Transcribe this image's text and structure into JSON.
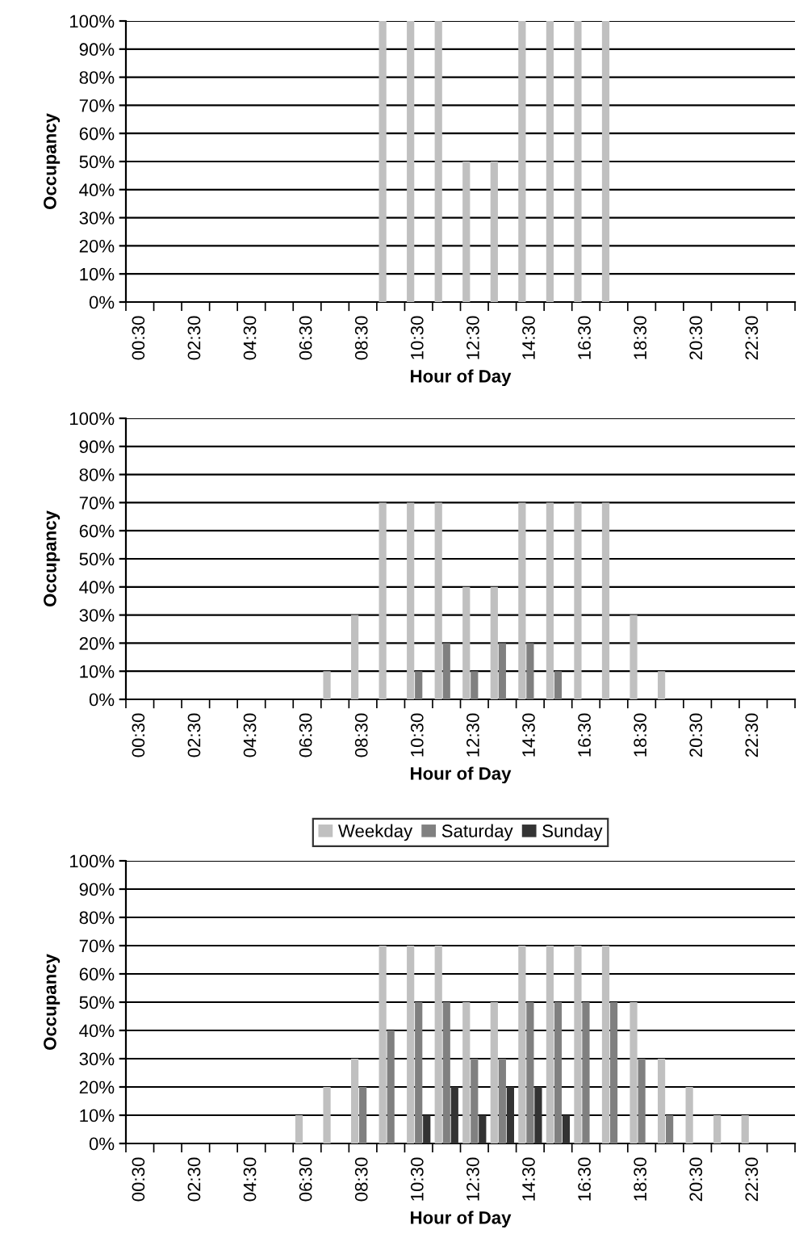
{
  "chart_data": [
    {
      "type": "bar",
      "xlabel": "Hour of Day",
      "ylabel": "Occupancy",
      "categories": [
        "00:30",
        null,
        "02:30",
        null,
        "04:30",
        null,
        "06:30",
        null,
        "08:30",
        null,
        "10:30",
        null,
        "12:30",
        null,
        "14:30",
        null,
        "16:30",
        null,
        "18:30",
        null,
        "20:30",
        null,
        "22:30",
        null
      ],
      "series": [
        {
          "color": "#c0c0c0",
          "values": [
            0,
            0,
            0,
            0,
            0,
            0,
            0,
            0,
            0,
            100,
            100,
            100,
            50,
            50,
            100,
            100,
            100,
            100,
            0,
            0,
            0,
            0,
            0,
            0
          ]
        },
        {
          "color": "#808080",
          "values": [
            0,
            0,
            0,
            0,
            0,
            0,
            0,
            0,
            0,
            0,
            0,
            0,
            0,
            0,
            0,
            0,
            0,
            0,
            0,
            0,
            0,
            0,
            0,
            0
          ]
        },
        {
          "color": "#333333",
          "values": [
            0,
            0,
            0,
            0,
            0,
            0,
            0,
            0,
            0,
            0,
            0,
            0,
            0,
            0,
            0,
            0,
            0,
            0,
            0,
            0,
            0,
            0,
            0,
            0
          ]
        }
      ],
      "ylim": [
        0,
        100
      ],
      "yticks": [
        {
          "value": 0,
          "label": "0%"
        },
        {
          "value": 10,
          "label": "10%"
        },
        {
          "value": 20,
          "label": "20%"
        },
        {
          "value": 30,
          "label": "30%"
        },
        {
          "value": 40,
          "label": "40%"
        },
        {
          "value": 50,
          "label": "50%"
        },
        {
          "value": 60,
          "label": "60%"
        },
        {
          "value": 70,
          "label": "70%"
        },
        {
          "value": 80,
          "label": "80%"
        },
        {
          "value": 90,
          "label": "90%"
        },
        {
          "value": 100,
          "label": "100%"
        }
      ],
      "grid": "y",
      "legend": false
    },
    {
      "type": "bar",
      "xlabel": "Hour of Day",
      "ylabel": "Occupancy",
      "categories": [
        "00:30",
        null,
        "02:30",
        null,
        "04:30",
        null,
        "06:30",
        null,
        "08:30",
        null,
        "10:30",
        null,
        "12:30",
        null,
        "14:30",
        null,
        "16:30",
        null,
        "18:30",
        null,
        "20:30",
        null,
        "22:30",
        null
      ],
      "series": [
        {
          "color": "#c0c0c0",
          "values": [
            0,
            0,
            0,
            0,
            0,
            0,
            0,
            10,
            30,
            70,
            70,
            70,
            40,
            40,
            70,
            70,
            70,
            70,
            30,
            10,
            0,
            0,
            0,
            0
          ]
        },
        {
          "color": "#808080",
          "values": [
            0,
            0,
            0,
            0,
            0,
            0,
            0,
            0,
            0,
            0,
            10,
            20,
            10,
            20,
            20,
            10,
            0,
            0,
            0,
            0,
            0,
            0,
            0,
            0
          ]
        },
        {
          "color": "#333333",
          "values": [
            0,
            0,
            0,
            0,
            0,
            0,
            0,
            0,
            0,
            0,
            0,
            0,
            0,
            0,
            0,
            0,
            0,
            0,
            0,
            0,
            0,
            0,
            0,
            0
          ]
        }
      ],
      "ylim": [
        0,
        100
      ],
      "yticks": [
        {
          "value": 0,
          "label": "0%"
        },
        {
          "value": 10,
          "label": "10%"
        },
        {
          "value": 20,
          "label": "20%"
        },
        {
          "value": 30,
          "label": "30%"
        },
        {
          "value": 40,
          "label": "40%"
        },
        {
          "value": 50,
          "label": "50%"
        },
        {
          "value": 60,
          "label": "60%"
        },
        {
          "value": 70,
          "label": "70%"
        },
        {
          "value": 80,
          "label": "80%"
        },
        {
          "value": 90,
          "label": "90%"
        },
        {
          "value": 100,
          "label": "100%"
        }
      ],
      "grid": "y",
      "legend": false
    },
    {
      "type": "bar",
      "xlabel": "Hour of Day",
      "ylabel": "Occupancy",
      "categories": [
        "00:30",
        null,
        "02:30",
        null,
        "04:30",
        null,
        "06:30",
        null,
        "08:30",
        null,
        "10:30",
        null,
        "12:30",
        null,
        "14:30",
        null,
        "16:30",
        null,
        "18:30",
        null,
        "20:30",
        null,
        "22:30",
        null
      ],
      "series": [
        {
          "name": "Weekday",
          "color": "#c0c0c0",
          "values": [
            0,
            0,
            0,
            0,
            0,
            0,
            10,
            20,
            30,
            70,
            70,
            70,
            50,
            50,
            70,
            70,
            70,
            70,
            50,
            30,
            20,
            10,
            10,
            0
          ]
        },
        {
          "name": "Saturday",
          "color": "#808080",
          "values": [
            0,
            0,
            0,
            0,
            0,
            0,
            0,
            0,
            20,
            40,
            50,
            50,
            30,
            30,
            50,
            50,
            50,
            50,
            30,
            10,
            0,
            0,
            0,
            0
          ]
        },
        {
          "name": "Sunday",
          "color": "#333333",
          "values": [
            0,
            0,
            0,
            0,
            0,
            0,
            0,
            0,
            0,
            0,
            10,
            20,
            10,
            20,
            20,
            10,
            0,
            0,
            0,
            0,
            0,
            0,
            0,
            0
          ]
        }
      ],
      "ylim": [
        0,
        100
      ],
      "yticks": [
        {
          "value": 0,
          "label": "0%"
        },
        {
          "value": 10,
          "label": "10%"
        },
        {
          "value": 20,
          "label": "20%"
        },
        {
          "value": 30,
          "label": "30%"
        },
        {
          "value": 40,
          "label": "40%"
        },
        {
          "value": 50,
          "label": "50%"
        },
        {
          "value": 60,
          "label": "60%"
        },
        {
          "value": 70,
          "label": "70%"
        },
        {
          "value": 80,
          "label": "80%"
        },
        {
          "value": 90,
          "label": "90%"
        },
        {
          "value": 100,
          "label": "100%"
        }
      ],
      "grid": "y",
      "legend": "top"
    }
  ]
}
